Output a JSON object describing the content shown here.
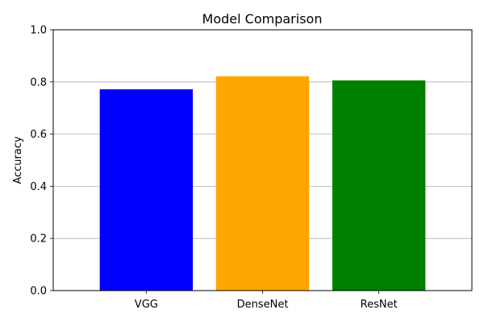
{
  "chart_data": {
    "type": "bar",
    "title": "Model Comparison",
    "xlabel": "",
    "ylabel": "Accuracy",
    "categories": [
      "VGG",
      "DenseNet",
      "ResNet"
    ],
    "values": [
      0.772,
      0.822,
      0.806
    ],
    "colors": [
      "#0000ff",
      "#ffa500",
      "#008000"
    ],
    "ylim": [
      0,
      1.0
    ],
    "yticks": [
      "0.0",
      "0.2",
      "0.4",
      "0.6",
      "0.8",
      "1.0"
    ],
    "grid": "y-major"
  }
}
